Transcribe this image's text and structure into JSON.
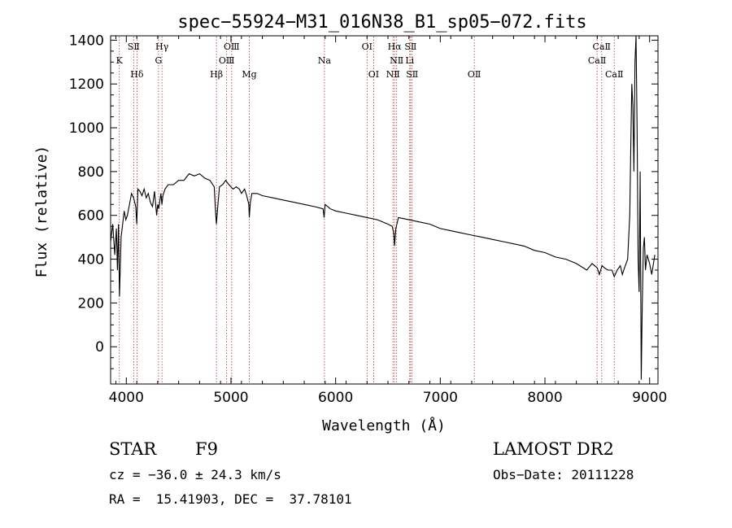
{
  "chart_data": {
    "type": "line",
    "title": "spec−55924−M31_016N38_B1_sp05−072.fits",
    "xlabel": "Wavelength (Å)",
    "ylabel": "Flux (relative)",
    "xlim": [
      3850,
      9080
    ],
    "ylim": [
      -170,
      1420
    ],
    "xticks": [
      4000,
      5000,
      6000,
      7000,
      8000,
      9000
    ],
    "yticks": [
      0,
      200,
      400,
      600,
      800,
      1000,
      1200,
      1400
    ],
    "grid": false,
    "legend": "none",
    "series": [
      {
        "color": "#000000",
        "x": [
          3850,
          3870,
          3890,
          3905,
          3915,
          3925,
          3935,
          3950,
          3965,
          3980,
          3995,
          4010,
          4030,
          4050,
          4070,
          4090,
          4100,
          4110,
          4130,
          4150,
          4170,
          4190,
          4210,
          4230,
          4250,
          4270,
          4290,
          4300,
          4310,
          4330,
          4340,
          4350,
          4370,
          4400,
          4450,
          4500,
          4550,
          4600,
          4650,
          4700,
          4750,
          4800,
          4840,
          4855,
          4861,
          4870,
          4890,
          4920,
          4950,
          4980,
          5000,
          5020,
          5050,
          5080,
          5100,
          5130,
          5150,
          5170,
          5175,
          5185,
          5200,
          5250,
          5300,
          5400,
          5500,
          5600,
          5700,
          5800,
          5880,
          5890,
          5900,
          5950,
          6000,
          6100,
          6200,
          6300,
          6400,
          6500,
          6540,
          6555,
          6563,
          6575,
          6600,
          6700,
          6800,
          6900,
          7000,
          7100,
          7200,
          7300,
          7400,
          7500,
          7600,
          7700,
          7800,
          7900,
          8000,
          8100,
          8200,
          8300,
          8400,
          8450,
          8500,
          8520,
          8545,
          8570,
          8600,
          8640,
          8662,
          8690,
          8720,
          8740,
          8760,
          8775,
          8790,
          8800,
          8810,
          8820,
          8830,
          8840,
          8850,
          8860,
          8870,
          8880,
          8890,
          8900,
          8910,
          8920,
          8930,
          8940,
          8950,
          8960,
          8975,
          9000,
          9020,
          9050
        ],
        "y": [
          480,
          560,
          420,
          540,
          350,
          560,
          230,
          500,
          560,
          620,
          580,
          600,
          650,
          700,
          680,
          640,
          560,
          720,
          710,
          690,
          720,
          680,
          700,
          660,
          640,
          710,
          600,
          650,
          630,
          700,
          650,
          690,
          720,
          740,
          740,
          760,
          760,
          790,
          780,
          790,
          770,
          760,
          730,
          600,
          560,
          620,
          730,
          740,
          760,
          740,
          730,
          720,
          730,
          720,
          700,
          720,
          690,
          650,
          590,
          660,
          700,
          700,
          690,
          680,
          670,
          660,
          650,
          640,
          630,
          590,
          650,
          630,
          620,
          610,
          600,
          590,
          580,
          560,
          550,
          520,
          460,
          540,
          590,
          580,
          570,
          560,
          540,
          530,
          520,
          510,
          500,
          490,
          480,
          470,
          460,
          440,
          430,
          410,
          400,
          380,
          350,
          380,
          360,
          330,
          370,
          360,
          350,
          350,
          320,
          350,
          370,
          330,
          360,
          380,
          400,
          500,
          600,
          900,
          1200,
          1100,
          800,
          1300,
          1420,
          1000,
          400,
          250,
          800,
          -150,
          200,
          450,
          500,
          350,
          420,
          380,
          330,
          420
        ],
        "lines": [
          {
            "label": "K",
            "x": 3933.7,
            "row": 2
          },
          {
            "label": "SⅡ",
            "x": 4070.0,
            "row": 1
          },
          {
            "label": "Hδ",
            "x": 4101.7,
            "row": 3
          },
          {
            "label": "Hγ",
            "x": 4340.5,
            "row": 1
          },
          {
            "label": "G",
            "x": 4307.9,
            "row": 2
          },
          {
            "label": "Hβ",
            "x": 4861.3,
            "row": 3
          },
          {
            "label": "OⅢ",
            "x": 4958.9,
            "row": 2
          },
          {
            "label": "OⅢ",
            "x": 5006.8,
            "row": 1
          },
          {
            "label": "Mg",
            "x": 5175.3,
            "row": 3
          },
          {
            "label": "Na",
            "x": 5893.0,
            "row": 2
          },
          {
            "label": "OⅠ",
            "x": 6300.3,
            "row": 1
          },
          {
            "label": "OⅠ",
            "x": 6363.8,
            "row": 3
          },
          {
            "label": "NⅡ",
            "x": 6548.1,
            "row": 3
          },
          {
            "label": "Hα",
            "x": 6562.8,
            "row": 1
          },
          {
            "label": "NⅡ",
            "x": 6583.4,
            "row": 2
          },
          {
            "label": "Li",
            "x": 6707.8,
            "row": 2
          },
          {
            "label": "SⅡ",
            "x": 6716.4,
            "row": 1
          },
          {
            "label": "SⅡ",
            "x": 6730.8,
            "row": 3
          },
          {
            "label": "OⅡ",
            "x": 7325.0,
            "row": 3
          },
          {
            "label": "CaⅡ",
            "x": 8498.0,
            "row": 2
          },
          {
            "label": "CaⅡ",
            "x": 8542.1,
            "row": 1
          },
          {
            "label": "CaⅡ",
            "x": 8662.1,
            "row": 3
          }
        ]
      }
    ]
  },
  "footer": {
    "class_label": "STAR",
    "subclass_label": "F9",
    "survey": "LAMOST DR2",
    "redshift": "cz = −36.0 ± 24.3 km/s",
    "obs_date": "Obs−Date: 20111228",
    "coords": "RA =  15.41903, DEC =  37.78101"
  }
}
